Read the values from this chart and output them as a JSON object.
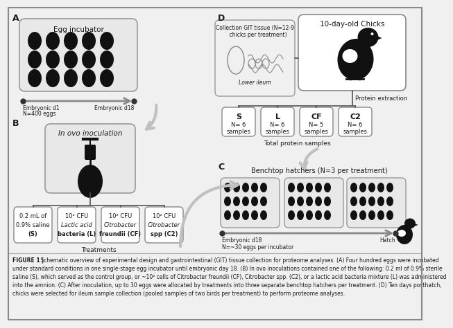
{
  "bg_color": "#f0f0f0",
  "text_color": "#1a1a1a",
  "egg_color": "#111111",
  "box_fill": "#ffffff",
  "box_border": "#888888",
  "arrow_color": "#b0b0b0",
  "panel_A_label": "A",
  "panel_B_label": "B",
  "panel_C_label": "C",
  "panel_D_label": "D",
  "egg_incubator_title": "Egg incubator",
  "embryonic_d1_line1": "Embryonic d1",
  "embryonic_d1_line2": "N=400 eggs",
  "embryonic_d18": "Embryonic d18",
  "in_ovo_title": "In ovo inoculation",
  "treatment_labels": [
    "0.2 mL of\n0.9% saline\n(S)",
    "10² CFU\nLactic acid\nbacteria (L)",
    "10² CFU\nCitrobacter\nfreundii (CF)",
    "10² CFU\nCitrobacter\nspp (C2)"
  ],
  "treatments_label": "Treatments",
  "panel_D_title": "10-day-old Chicks",
  "collection_text": "Collection GIT tissue (N=12-9\n    chicks per treatment)",
  "lower_ileum_label": "Lower ileum",
  "protein_extraction": "Protein extraction",
  "sample_boxes": [
    {
      "label": "S",
      "n": "N= 6\nsamples"
    },
    {
      "label": "L",
      "n": "N= 6\nsamples"
    },
    {
      "label": "CF",
      "n": "N= 5\nsamples"
    },
    {
      "label": "C2",
      "n": "N= 6\nsamples"
    }
  ],
  "total_protein_label": "Total protein samples",
  "benchtop_title": "Benchtop hatchers (N=3 per treatment)",
  "embryonic_d18_hatch": "Embryonic d18\nN=~30 eggs per incubator",
  "hatch_label": "Hatch",
  "caption_bold": "FIGURE 1 |",
  "caption_rest": " Schematic overview of experimental design and gastrointestinal (GIT) tissue collection for proteome analyses. (A) Four hundred eggs were incubated",
  "caption_lines": [
    "under standard conditions in one single-stage egg incubator until embryonic day 18. (B) In ovo inoculations contained one of the following: 0.2 ml of 0.9% sterile",
    "saline (S), which served as the control group, or ~10² cells of Citrobacter freundii (CF), Citrobacter spp. (C2), or a lactic acid bacteria mixture (L) was administered",
    "into the amnion. (C) After inoculation, up to 30 eggs were allocated by treatments into three separate benchtop hatchers per treatment. (D) Ten days posthatch,",
    "chicks were selected for ileum sample collection (pooled samples of two birds per treatment) to perform proteome analyses."
  ]
}
